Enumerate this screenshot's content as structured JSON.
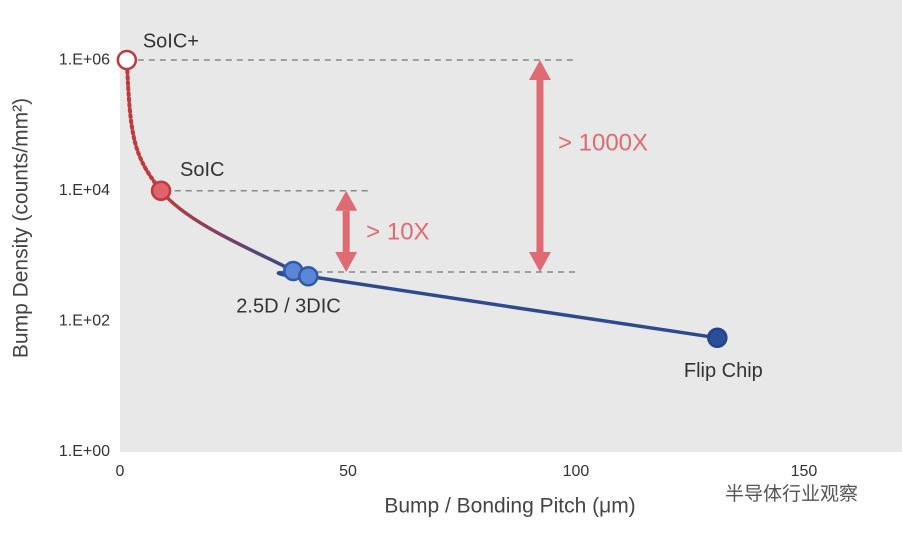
{
  "chart_data": {
    "type": "line",
    "x_label": "Bump / Bonding Pitch (μm)",
    "y_label": "Bump Density (counts/mm²)",
    "log_y": true,
    "xlim": [
      0,
      171.5
    ],
    "ylim": [
      1,
      8300000
    ],
    "xticks": [
      0,
      50,
      100,
      150
    ],
    "yticks": [
      {
        "value": 1,
        "label": "1.E+00"
      },
      {
        "value": 100,
        "label": "1.E+02"
      },
      {
        "value": 10000,
        "label": "1.E+04"
      },
      {
        "value": 1000000,
        "label": "1.E+06"
      }
    ],
    "background": "#e8e8e8",
    "series": [
      {
        "x": [
          1.5,
          9,
          38,
          41.3,
          131
        ],
        "values": [
          1000000,
          10000,
          590,
          490,
          56
        ],
        "point_labels": [
          "SoIC+",
          "SoIC",
          "2.5D / 3DIC",
          null,
          "Flip Chip"
        ],
        "colors": [
          "#ffffff",
          "#e06468",
          "#5b87d6",
          "#5b87d6",
          "#2b4d9a"
        ],
        "stroke_colors": [
          "#c0393e",
          "#c0393e",
          "#2f5aa8",
          "#2f5aa8",
          "#24448c"
        ]
      }
    ],
    "reference_lines": [
      {
        "y": 1000000,
        "x": [
          1.5,
          100
        ]
      },
      {
        "y": 10000,
        "x": [
          12,
          55
        ]
      },
      {
        "y": 570,
        "x": [
          43,
          100
        ]
      }
    ],
    "arrows": [
      {
        "x": 49.6,
        "y": [
          10000,
          570
        ],
        "label": "> 10X"
      },
      {
        "x": 92.1,
        "y": [
          1000000,
          570
        ],
        "label": "> 1000X"
      }
    ],
    "watermark": "半导体行业观察"
  }
}
